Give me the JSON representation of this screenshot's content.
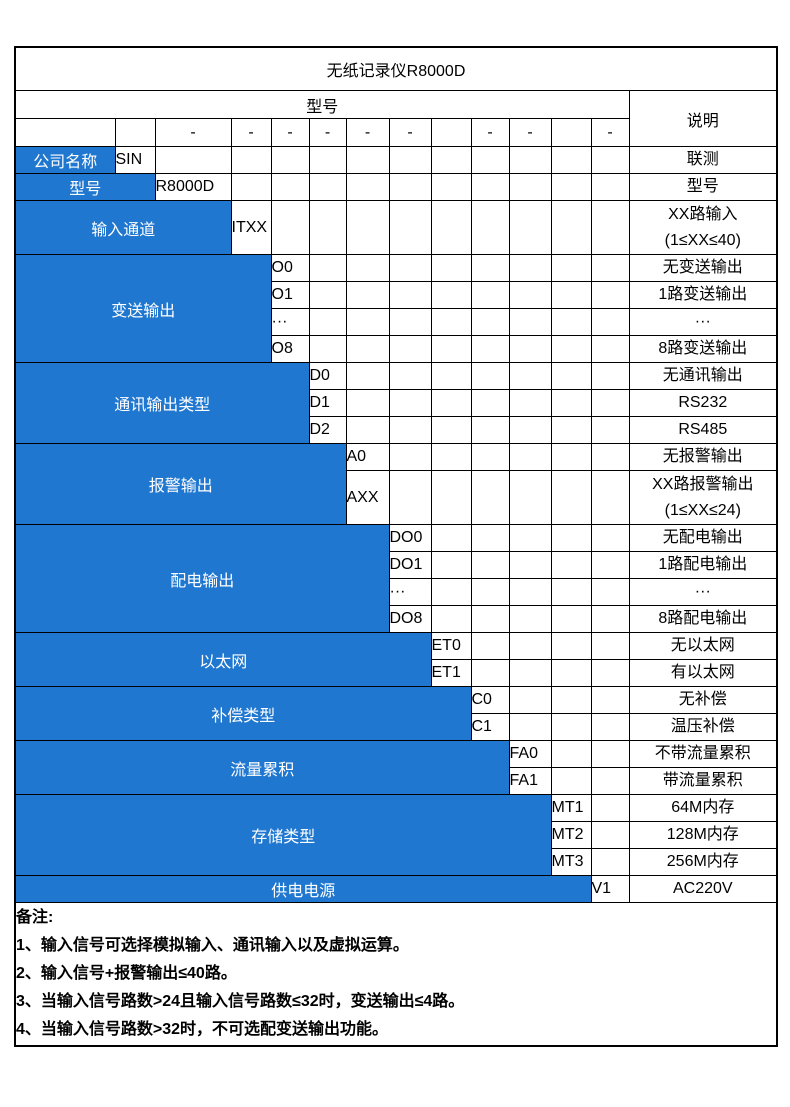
{
  "title": "无纸记录仪R8000D",
  "header": {
    "model_label": "型号",
    "desc_label": "说明"
  },
  "dash_row": [
    "",
    "",
    "-",
    "-",
    "-",
    "-",
    "-",
    "-",
    "",
    "-",
    "-",
    "",
    "-"
  ],
  "accent_color": "#2077d0",
  "sections": [
    {
      "name": "公司名称",
      "span": 1,
      "rows": [
        {
          "code": "SIN",
          "desc": "联测",
          "units": 1
        }
      ]
    },
    {
      "name": "型号",
      "span": 2,
      "rows": [
        {
          "code": "R8000D",
          "desc": "型号",
          "units": 1
        }
      ]
    },
    {
      "name": "输入通道",
      "span": 3,
      "rows": [
        {
          "code": "ITXX",
          "desc": "XX路输入",
          "desc2": "(1≤XX≤40)",
          "units": 2
        }
      ]
    },
    {
      "name": "变送输出",
      "span": 4,
      "rows": [
        {
          "code": "O0",
          "desc": "无变送输出",
          "units": 1
        },
        {
          "code": "O1",
          "desc": "1路变送输出",
          "units": 1
        },
        {
          "code": "···",
          "desc": "···",
          "units": 1
        },
        {
          "code": "O8",
          "desc": "8路变送输出",
          "units": 1
        }
      ]
    },
    {
      "name": "通讯输出类型",
      "span": 5,
      "rows": [
        {
          "code": "D0",
          "desc": "无通讯输出",
          "units": 1
        },
        {
          "code": "D1",
          "desc": "RS232",
          "units": 1
        },
        {
          "code": "D2",
          "desc": "RS485",
          "units": 1
        }
      ]
    },
    {
      "name": "报警输出",
      "span": 6,
      "rows": [
        {
          "code": "A0",
          "desc": "无报警输出",
          "units": 1
        },
        {
          "code": "AXX",
          "desc": "XX路报警输出",
          "desc2": "(1≤XX≤24)",
          "units": 2
        }
      ]
    },
    {
      "name": "配电输出",
      "span": 7,
      "rows": [
        {
          "code": "DO0",
          "desc": "无配电输出",
          "units": 1
        },
        {
          "code": "DO1",
          "desc": "1路配电输出",
          "units": 1
        },
        {
          "code": "···",
          "desc": "···",
          "units": 1
        },
        {
          "code": "DO8",
          "desc": "8路配电输出",
          "units": 1
        }
      ]
    },
    {
      "name": "以太网",
      "span": 8,
      "rows": [
        {
          "code": "ET0",
          "desc": "无以太网",
          "units": 1
        },
        {
          "code": "ET1",
          "desc": "有以太网",
          "units": 1
        }
      ]
    },
    {
      "name": "补偿类型",
      "span": 9,
      "rows": [
        {
          "code": "C0",
          "desc": "无补偿",
          "units": 1
        },
        {
          "code": "C1",
          "desc": "温压补偿",
          "units": 1
        }
      ]
    },
    {
      "name": "流量累积",
      "span": 10,
      "rows": [
        {
          "code": "FA0",
          "desc": "不带流量累积",
          "units": 1
        },
        {
          "code": "FA1",
          "desc": "带流量累积",
          "units": 1
        }
      ]
    },
    {
      "name": "存储类型",
      "span": 11,
      "rows": [
        {
          "code": "MT1",
          "desc": "64M内存",
          "units": 1
        },
        {
          "code": "MT2",
          "desc": "128M内存",
          "units": 1
        },
        {
          "code": "MT3",
          "desc": "256M内存",
          "units": 1
        }
      ]
    },
    {
      "name": "供电电源",
      "span": 12,
      "rows": [
        {
          "code": "V1",
          "desc": "AC220V",
          "units": 1
        }
      ]
    }
  ],
  "notes": {
    "label": "备注:",
    "items": [
      "1、输入信号可选择模拟输入、通讯输入以及虚拟运算。",
      "2、输入信号+报警输出≤40路。",
      "3、当输入信号路数>24且输入信号路数≤32时，变送输出≤4路。",
      "4、当输入信号路数>32时，不可选配变送输出功能。"
    ]
  }
}
